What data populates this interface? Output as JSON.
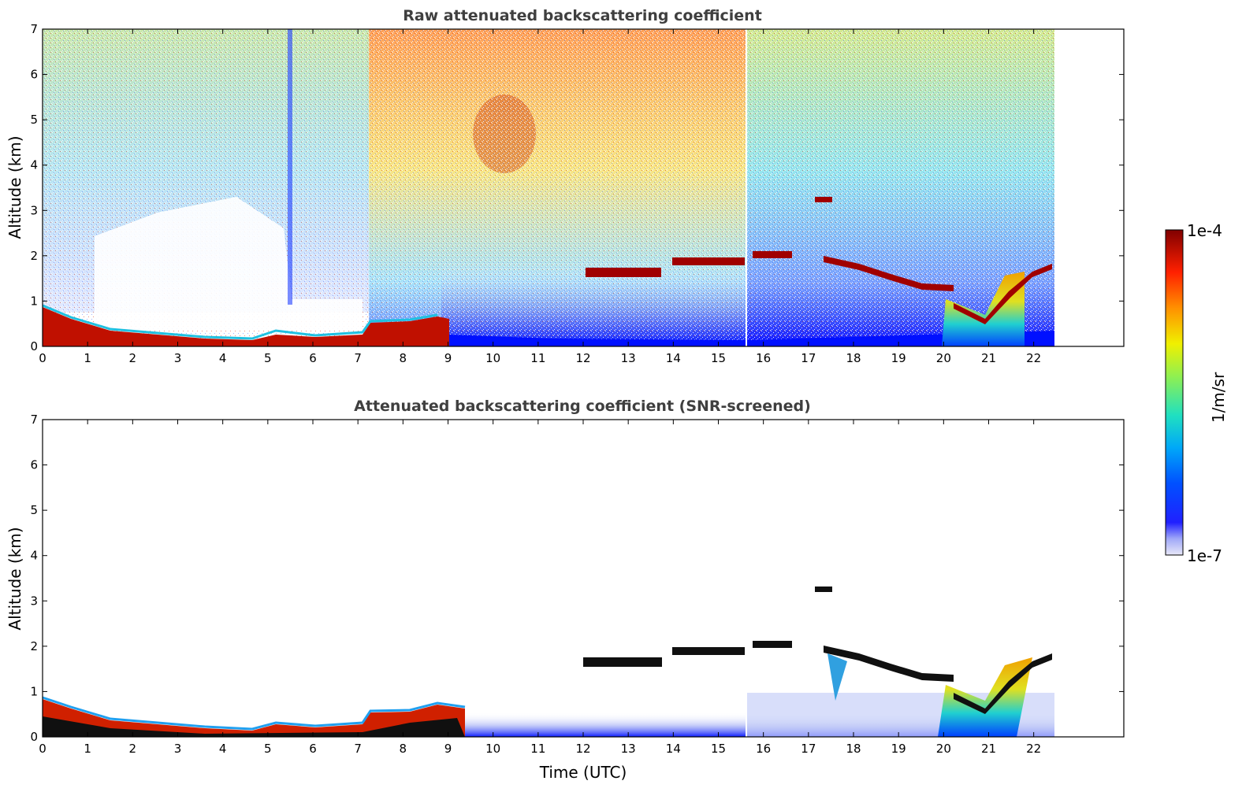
{
  "chart_data": [
    {
      "type": "heatmap",
      "title": "Raw attenuated backscattering coefficient",
      "xlabel": "",
      "ylabel": "Altitude (km)",
      "xlim": [
        0,
        24
      ],
      "ylim": [
        0,
        7
      ],
      "xticks": [
        "0",
        "1",
        "2",
        "3",
        "4",
        "5",
        "6",
        "7",
        "8",
        "9",
        "10",
        "11",
        "12",
        "13",
        "14",
        "15",
        "16",
        "17",
        "18",
        "19",
        "20",
        "21",
        "22"
      ],
      "yticks": [
        "0",
        "1",
        "2",
        "3",
        "4",
        "5",
        "6",
        "7"
      ],
      "data_end_time": 22.45,
      "features": [
        {
          "name": "boundary-layer-aerosol",
          "t_start": 0,
          "t_end": 9.3,
          "alt_top_km": [
            0.8,
            0.5,
            0.3,
            0.2,
            0.15,
            0.3,
            0.2,
            0.45,
            0.5,
            0.6
          ]
        },
        {
          "name": "cloud-layer",
          "t_start": 12.2,
          "t_end": 13.7,
          "alt_km": 1.65
        },
        {
          "name": "cloud-layer",
          "t_start": 13.9,
          "t_end": 15.6,
          "alt_km": 1.85
        },
        {
          "name": "cloud-layer",
          "t_start": 15.7,
          "t_end": 16.6,
          "alt_km": 2.0
        },
        {
          "name": "cloud-layer",
          "t_start": 17.2,
          "t_end": 17.5,
          "alt_km": 3.25
        },
        {
          "name": "cloud-layer",
          "t_start": 17.5,
          "t_end": 20.2,
          "alt_km": 1.5
        },
        {
          "name": "precipitating-cloud",
          "t_start": 20.0,
          "t_end": 22.4,
          "alt_km": 1.4
        }
      ]
    },
    {
      "type": "heatmap",
      "title": "Attenuated backscattering coefficient (SNR-screened)",
      "xlabel": "Time (UTC)",
      "ylabel": "Altitude (km)",
      "xlim": [
        0,
        24
      ],
      "ylim": [
        0,
        7
      ],
      "xticks": [
        "0",
        "1",
        "2",
        "3",
        "4",
        "5",
        "6",
        "7",
        "8",
        "9",
        "10",
        "11",
        "12",
        "13",
        "14",
        "15",
        "16",
        "17",
        "18",
        "19",
        "20",
        "21",
        "22"
      ],
      "yticks": [
        "0",
        "1",
        "2",
        "3",
        "4",
        "5",
        "6",
        "7"
      ],
      "data_end_time": 22.45
    }
  ],
  "colorbar": {
    "label": "1/m/sr",
    "max_label": "1e-4",
    "min_label": "1e-7",
    "scale": "log",
    "colors": [
      "#e8e8f8",
      "#0000ff",
      "#00b0ff",
      "#20e0c0",
      "#a0f040",
      "#f0f000",
      "#ff9000",
      "#ff2000",
      "#800000"
    ]
  }
}
